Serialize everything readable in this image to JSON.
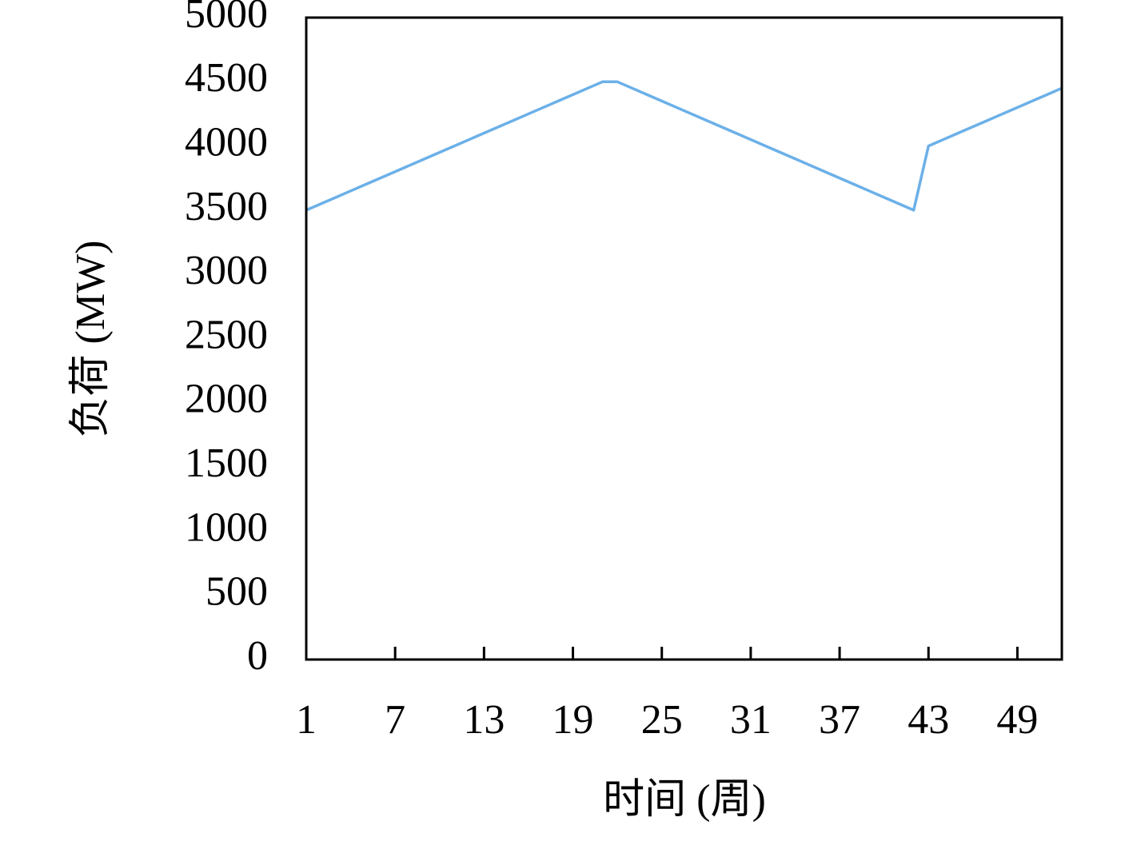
{
  "chart_data": {
    "type": "line",
    "x_label": "时间 (周)",
    "y_label": "负荷 (MW)",
    "x": [
      1,
      2,
      3,
      4,
      5,
      6,
      7,
      8,
      9,
      10,
      11,
      12,
      13,
      14,
      15,
      16,
      17,
      18,
      19,
      20,
      21,
      22,
      23,
      24,
      25,
      26,
      27,
      28,
      29,
      30,
      31,
      32,
      33,
      34,
      35,
      36,
      37,
      38,
      39,
      40,
      41,
      42,
      43,
      44,
      45,
      46,
      47,
      48,
      49,
      50,
      51,
      52
    ],
    "series": [
      {
        "name": "负荷",
        "color": "#6cb0e8",
        "values": [
          3500,
          3550,
          3600,
          3650,
          3700,
          3750,
          3800,
          3850,
          3900,
          3950,
          4000,
          4050,
          4100,
          4150,
          4200,
          4250,
          4300,
          4350,
          4400,
          4450,
          4500,
          4500,
          4450,
          4400,
          4350,
          4300,
          4250,
          4200,
          4150,
          4100,
          4050,
          4000,
          3950,
          3900,
          3850,
          3800,
          3750,
          3700,
          3650,
          3600,
          3550,
          3500,
          4000,
          4050,
          4100,
          4150,
          4200,
          4250,
          4300,
          4350,
          4400,
          4450
        ]
      }
    ],
    "xlim": [
      1,
      52
    ],
    "xticks": [
      1,
      7,
      13,
      19,
      25,
      31,
      37,
      43,
      49
    ],
    "ylim": [
      0,
      5000
    ],
    "yticks": [
      0,
      500,
      1000,
      1500,
      2000,
      2500,
      3000,
      3500,
      4000,
      4500,
      5000
    ],
    "grid": false,
    "legend": false
  }
}
